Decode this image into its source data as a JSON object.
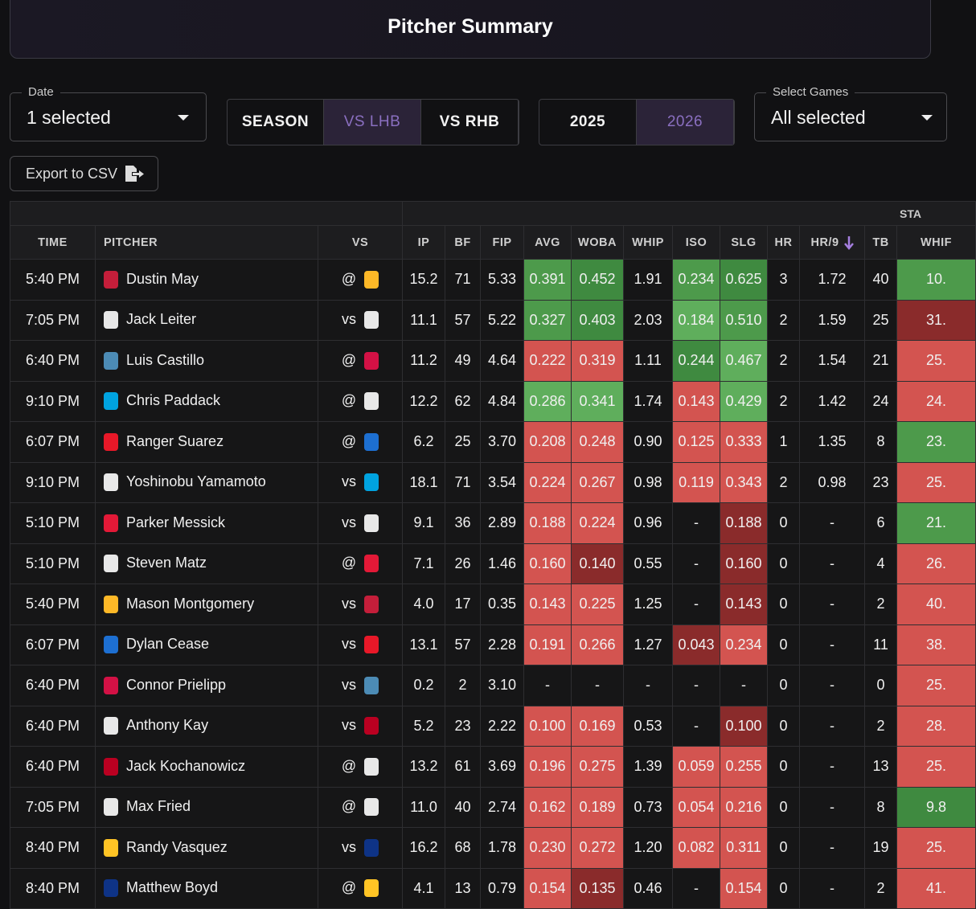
{
  "header": {
    "title": "Pitcher Summary"
  },
  "filters": {
    "date_label": "Date",
    "date_value": "1 selected",
    "splits": [
      "SEASON",
      "VS LHB",
      "VS RHB"
    ],
    "active_split": 1,
    "years": [
      "2025",
      "2026"
    ],
    "active_year": 1,
    "games_label": "Select Games",
    "games_value": "All selected"
  },
  "export": {
    "label": "Export to CSV"
  },
  "table": {
    "group_header": "STA",
    "sorted_column": 12,
    "columns": [
      "TIME",
      "PITCHER",
      "VS",
      "IP",
      "BF",
      "FIP",
      "AVG",
      "WOBA",
      "WHIP",
      "ISO",
      "SLG",
      "HR",
      "HR/9",
      "TB",
      "WHIF"
    ],
    "rows": [
      {
        "time": "5:40 PM",
        "pitcher": "Dustin May",
        "vs": "@",
        "ip": "15.2",
        "bf": "71",
        "fip": "5.33",
        "avg": "0.391",
        "woba": "0.452",
        "whip": "1.91",
        "iso": "0.234",
        "slg": "0.625",
        "hr": "3",
        "hr9": "1.72",
        "tb": "40",
        "whif": "10.",
        "shade": {
          "avg": "#4d9a4b",
          "woba": "#3f8a40",
          "iso": "#4d9a4b",
          "slg": "#3f8a40",
          "whif": "#4d9a4b"
        },
        "team_color": "#c41e3a",
        "opp_color": "#fdb827"
      },
      {
        "time": "7:05 PM",
        "pitcher": "Jack Leiter",
        "vs": "vs",
        "ip": "11.1",
        "bf": "57",
        "fip": "5.22",
        "avg": "0.327",
        "woba": "0.403",
        "whip": "2.03",
        "iso": "0.184",
        "slg": "0.510",
        "hr": "2",
        "hr9": "1.59",
        "tb": "25",
        "whif": "31.",
        "shade": {
          "avg": "#4d9a4b",
          "woba": "#3f8a40",
          "iso": "#5fae5c",
          "slg": "#4d9a4b",
          "whif": "#8a2b2b"
        },
        "team_color": "#e8e8e8",
        "opp_color": "#e8e8e8"
      },
      {
        "time": "6:40 PM",
        "pitcher": "Luis Castillo",
        "vs": "@",
        "ip": "11.2",
        "bf": "49",
        "fip": "4.64",
        "avg": "0.222",
        "woba": "0.319",
        "whip": "1.11",
        "iso": "0.244",
        "slg": "0.467",
        "hr": "2",
        "hr9": "1.54",
        "tb": "21",
        "whif": "25.",
        "shade": {
          "avg": "#d35450",
          "woba": "#d35450",
          "iso": "#3f8a40",
          "slg": "#5fae5c",
          "whif": "#d35450"
        },
        "team_color": "#4c8bb5",
        "opp_color": "#d31145"
      },
      {
        "time": "9:10 PM",
        "pitcher": "Chris Paddack",
        "vs": "@",
        "ip": "12.2",
        "bf": "62",
        "fip": "4.84",
        "avg": "0.286",
        "woba": "0.341",
        "whip": "1.74",
        "iso": "0.143",
        "slg": "0.429",
        "hr": "2",
        "hr9": "1.42",
        "tb": "24",
        "whif": "24.",
        "shade": {
          "avg": "#5fae5c",
          "woba": "#5fae5c",
          "iso": "#d35450",
          "slg": "#5fae5c",
          "whif": "#d35450"
        },
        "team_color": "#00a3e0",
        "opp_color": "#e8e8e8"
      },
      {
        "time": "6:07 PM",
        "pitcher": "Ranger Suarez",
        "vs": "@",
        "ip": "6.2",
        "bf": "25",
        "fip": "3.70",
        "avg": "0.208",
        "woba": "0.248",
        "whip": "0.90",
        "iso": "0.125",
        "slg": "0.333",
        "hr": "1",
        "hr9": "1.35",
        "tb": "8",
        "whif": "23.",
        "shade": {
          "avg": "#d35450",
          "woba": "#d35450",
          "iso": "#d35450",
          "slg": "#d35450",
          "whif": "#4d9a4b"
        },
        "team_color": "#e81828",
        "opp_color": "#1d6fd1"
      },
      {
        "time": "9:10 PM",
        "pitcher": "Yoshinobu Yamamoto",
        "vs": "vs",
        "ip": "18.1",
        "bf": "71",
        "fip": "3.54",
        "avg": "0.224",
        "woba": "0.267",
        "whip": "0.98",
        "iso": "0.119",
        "slg": "0.343",
        "hr": "2",
        "hr9": "0.98",
        "tb": "23",
        "whif": "25.",
        "shade": {
          "avg": "#d35450",
          "woba": "#d35450",
          "iso": "#d35450",
          "slg": "#d35450",
          "whif": "#d35450"
        },
        "team_color": "#e8e8e8",
        "opp_color": "#00a3e0"
      },
      {
        "time": "5:10 PM",
        "pitcher": "Parker Messick",
        "vs": "vs",
        "ip": "9.1",
        "bf": "36",
        "fip": "2.89",
        "avg": "0.188",
        "woba": "0.224",
        "whip": "0.96",
        "iso": "-",
        "slg": "0.188",
        "hr": "0",
        "hr9": "-",
        "tb": "6",
        "whif": "21.",
        "shade": {
          "avg": "#d35450",
          "woba": "#d35450",
          "slg": "#8a2b2b",
          "whif": "#4d9a4b"
        },
        "team_color": "#e31937",
        "opp_color": "#e8e8e8"
      },
      {
        "time": "5:10 PM",
        "pitcher": "Steven Matz",
        "vs": "@",
        "ip": "7.1",
        "bf": "26",
        "fip": "1.46",
        "avg": "0.160",
        "woba": "0.140",
        "whip": "0.55",
        "iso": "-",
        "slg": "0.160",
        "hr": "0",
        "hr9": "-",
        "tb": "4",
        "whif": "26.",
        "shade": {
          "avg": "#d35450",
          "woba": "#8a2b2b",
          "slg": "#8a2b2b",
          "whif": "#d35450"
        },
        "team_color": "#e8e8e8",
        "opp_color": "#e31937"
      },
      {
        "time": "5:40 PM",
        "pitcher": "Mason Montgomery",
        "vs": "vs",
        "ip": "4.0",
        "bf": "17",
        "fip": "0.35",
        "avg": "0.143",
        "woba": "0.225",
        "whip": "1.25",
        "iso": "-",
        "slg": "0.143",
        "hr": "0",
        "hr9": "-",
        "tb": "2",
        "whif": "40.",
        "shade": {
          "avg": "#d35450",
          "woba": "#d35450",
          "slg": "#8a2b2b",
          "whif": "#d35450"
        },
        "team_color": "#fdb827",
        "opp_color": "#c41e3a"
      },
      {
        "time": "6:07 PM",
        "pitcher": "Dylan Cease",
        "vs": "vs",
        "ip": "13.1",
        "bf": "57",
        "fip": "2.28",
        "avg": "0.191",
        "woba": "0.266",
        "whip": "1.27",
        "iso": "0.043",
        "slg": "0.234",
        "hr": "0",
        "hr9": "-",
        "tb": "11",
        "whif": "38.",
        "shade": {
          "avg": "#d35450",
          "woba": "#d35450",
          "iso": "#8a2b2b",
          "slg": "#d35450",
          "whif": "#d35450"
        },
        "team_color": "#1d6fd1",
        "opp_color": "#e81828"
      },
      {
        "time": "6:40 PM",
        "pitcher": "Connor Prielipp",
        "vs": "vs",
        "ip": "0.2",
        "bf": "2",
        "fip": "3.10",
        "avg": "-",
        "woba": "-",
        "whip": "-",
        "iso": "-",
        "slg": "-",
        "hr": "0",
        "hr9": "-",
        "tb": "0",
        "whif": "25.",
        "shade": {
          "whif": "#d35450"
        },
        "team_color": "#d31145",
        "opp_color": "#4c8bb5"
      },
      {
        "time": "6:40 PM",
        "pitcher": "Anthony Kay",
        "vs": "vs",
        "ip": "5.2",
        "bf": "23",
        "fip": "2.22",
        "avg": "0.100",
        "woba": "0.169",
        "whip": "0.53",
        "iso": "-",
        "slg": "0.100",
        "hr": "0",
        "hr9": "-",
        "tb": "2",
        "whif": "28.",
        "shade": {
          "avg": "#d35450",
          "woba": "#d35450",
          "slg": "#8a2b2b",
          "whif": "#d35450"
        },
        "team_color": "#e8e8e8",
        "opp_color": "#ba0021"
      },
      {
        "time": "6:40 PM",
        "pitcher": "Jack Kochanowicz",
        "vs": "@",
        "ip": "13.2",
        "bf": "61",
        "fip": "3.69",
        "avg": "0.196",
        "woba": "0.275",
        "whip": "1.39",
        "iso": "0.059",
        "slg": "0.255",
        "hr": "0",
        "hr9": "-",
        "tb": "13",
        "whif": "25.",
        "shade": {
          "avg": "#d35450",
          "woba": "#d35450",
          "iso": "#d35450",
          "slg": "#d35450",
          "whif": "#d35450"
        },
        "team_color": "#ba0021",
        "opp_color": "#e8e8e8"
      },
      {
        "time": "7:05 PM",
        "pitcher": "Max Fried",
        "vs": "@",
        "ip": "11.0",
        "bf": "40",
        "fip": "2.74",
        "avg": "0.162",
        "woba": "0.189",
        "whip": "0.73",
        "iso": "0.054",
        "slg": "0.216",
        "hr": "0",
        "hr9": "-",
        "tb": "8",
        "whif": "9.8",
        "shade": {
          "avg": "#d35450",
          "woba": "#d35450",
          "iso": "#d35450",
          "slg": "#d35450",
          "whif": "#3f8a40"
        },
        "team_color": "#e8e8e8",
        "opp_color": "#e8e8e8"
      },
      {
        "time": "8:40 PM",
        "pitcher": "Randy Vasquez",
        "vs": "vs",
        "ip": "16.2",
        "bf": "68",
        "fip": "1.78",
        "avg": "0.230",
        "woba": "0.272",
        "whip": "1.20",
        "iso": "0.082",
        "slg": "0.311",
        "hr": "0",
        "hr9": "-",
        "tb": "19",
        "whif": "25.",
        "shade": {
          "avg": "#d35450",
          "woba": "#d35450",
          "iso": "#d35450",
          "slg": "#d35450",
          "whif": "#d35450"
        },
        "team_color": "#ffc425",
        "opp_color": "#0e3386"
      },
      {
        "time": "8:40 PM",
        "pitcher": "Matthew Boyd",
        "vs": "@",
        "ip": "4.1",
        "bf": "13",
        "fip": "0.79",
        "avg": "0.154",
        "woba": "0.135",
        "whip": "0.46",
        "iso": "-",
        "slg": "0.154",
        "hr": "0",
        "hr9": "-",
        "tb": "2",
        "whif": "41.",
        "shade": {
          "avg": "#d35450",
          "woba": "#8a2b2b",
          "slg": "#d35450",
          "whif": "#d35450"
        },
        "team_color": "#0e3386",
        "opp_color": "#ffc425"
      }
    ]
  }
}
